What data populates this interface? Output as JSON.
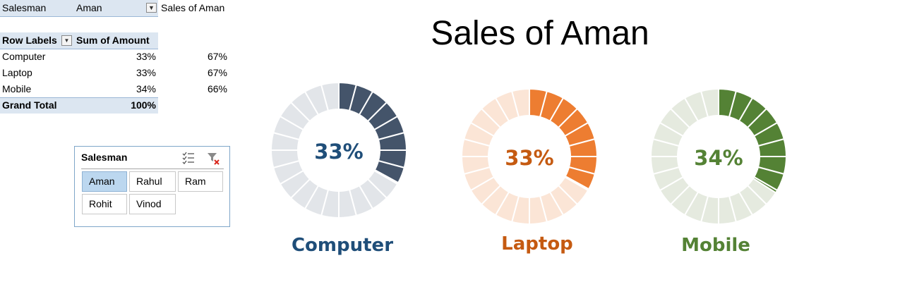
{
  "filter": {
    "field": "Salesman",
    "value": "Aman",
    "chart_title_cell": "Sales of Aman"
  },
  "pivot": {
    "header_row_labels": "Row Labels",
    "header_sum": "Sum of Amount",
    "rows": [
      {
        "label": "Computer",
        "value": "33%",
        "remainder": "67%"
      },
      {
        "label": "Laptop",
        "value": "33%",
        "remainder": "67%"
      },
      {
        "label": "Mobile",
        "value": "34%",
        "remainder": "66%"
      }
    ],
    "grand_total_label": "Grand Total",
    "grand_total_value": "100%"
  },
  "slicer": {
    "title": "Salesman",
    "icons": [
      "multi-select-icon",
      "clear-filter-icon"
    ],
    "items": [
      {
        "label": "Aman",
        "selected": true
      },
      {
        "label": "Rahul",
        "selected": false
      },
      {
        "label": "Ram",
        "selected": false
      },
      {
        "label": "Rohit",
        "selected": false
      },
      {
        "label": "Vinod",
        "selected": false
      }
    ]
  },
  "chart_title": "Sales of Aman",
  "chart_data": [
    {
      "type": "pie",
      "category": "Computer",
      "value": 33,
      "remainder": 67,
      "label": "33%",
      "color": "#44546a",
      "track_color": "#e2e5e9",
      "text_color": "#1f4e79",
      "segments": 24
    },
    {
      "type": "pie",
      "category": "Laptop",
      "value": 33,
      "remainder": 67,
      "label": "33%",
      "color": "#ed7d31",
      "track_color": "#fbe5d6",
      "text_color": "#c55a11",
      "segments": 24
    },
    {
      "type": "pie",
      "category": "Mobile",
      "value": 34,
      "remainder": 66,
      "label": "34%",
      "color": "#548235",
      "track_color": "#e5eadf",
      "text_color": "#548235",
      "segments": 24
    }
  ]
}
